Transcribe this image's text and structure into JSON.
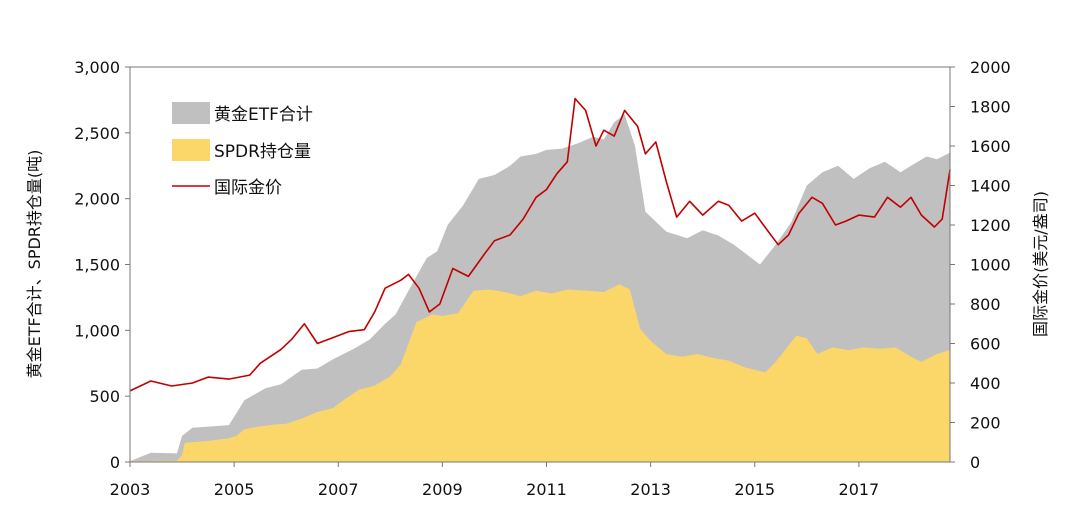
{
  "chart_data": {
    "type": "area",
    "x_range": [
      2003.0,
      2018.75
    ],
    "y_left": {
      "label": "黄金ETF合计、SPDR持仓量(吨)",
      "ylim": [
        0,
        3000
      ],
      "ticks": [
        0,
        500,
        1000,
        1500,
        2000,
        2500,
        3000
      ],
      "tick_labels": [
        "0",
        "500",
        "1,000",
        "1,500",
        "2,000",
        "2,500",
        "3,000"
      ]
    },
    "y_right": {
      "label": "国际金价(美元/盎司)",
      "ylim": [
        0,
        2000
      ],
      "ticks": [
        0,
        200,
        400,
        600,
        800,
        1000,
        1200,
        1400,
        1600,
        1800,
        2000
      ],
      "tick_labels": [
        "0",
        "200",
        "400",
        "600",
        "800",
        "1000",
        "1200",
        "1400",
        "1600",
        "1800",
        "2000"
      ]
    },
    "x_ticks": [
      2003,
      2005,
      2007,
      2009,
      2011,
      2013,
      2015,
      2017
    ],
    "x_tick_labels": [
      "2003",
      "2005",
      "2007",
      "2009",
      "2011",
      "2013",
      "2015",
      "2017"
    ],
    "legend_position": "top-left",
    "grid": false,
    "series": [
      {
        "name": "黄金ETF合计",
        "kind": "area",
        "axis": "left",
        "color": "#c0c0c0",
        "points": [
          [
            2003.0,
            5
          ],
          [
            2003.4,
            70
          ],
          [
            2003.9,
            65
          ],
          [
            2004.0,
            200
          ],
          [
            2004.2,
            260
          ],
          [
            2004.9,
            280
          ],
          [
            2005.2,
            470
          ],
          [
            2005.6,
            560
          ],
          [
            2005.9,
            590
          ],
          [
            2006.3,
            700
          ],
          [
            2006.6,
            710
          ],
          [
            2006.9,
            780
          ],
          [
            2007.3,
            860
          ],
          [
            2007.6,
            930
          ],
          [
            2007.9,
            1050
          ],
          [
            2008.1,
            1120
          ],
          [
            2008.35,
            1300
          ],
          [
            2008.7,
            1550
          ],
          [
            2008.9,
            1600
          ],
          [
            2009.1,
            1800
          ],
          [
            2009.4,
            1950
          ],
          [
            2009.7,
            2150
          ],
          [
            2010.0,
            2180
          ],
          [
            2010.3,
            2250
          ],
          [
            2010.5,
            2320
          ],
          [
            2010.8,
            2340
          ],
          [
            2011.0,
            2370
          ],
          [
            2011.3,
            2380
          ],
          [
            2011.6,
            2420
          ],
          [
            2011.9,
            2470
          ],
          [
            2012.1,
            2450
          ],
          [
            2012.3,
            2580
          ],
          [
            2012.5,
            2640
          ],
          [
            2012.7,
            2400
          ],
          [
            2012.9,
            1900
          ],
          [
            2013.3,
            1750
          ],
          [
            2013.7,
            1700
          ],
          [
            2014.0,
            1760
          ],
          [
            2014.3,
            1720
          ],
          [
            2014.6,
            1650
          ],
          [
            2014.9,
            1560
          ],
          [
            2015.1,
            1500
          ],
          [
            2015.4,
            1650
          ],
          [
            2015.7,
            1820
          ],
          [
            2016.0,
            2100
          ],
          [
            2016.3,
            2200
          ],
          [
            2016.6,
            2250
          ],
          [
            2016.9,
            2150
          ],
          [
            2017.2,
            2230
          ],
          [
            2017.5,
            2280
          ],
          [
            2017.8,
            2200
          ],
          [
            2018.0,
            2250
          ],
          [
            2018.3,
            2320
          ],
          [
            2018.5,
            2300
          ],
          [
            2018.75,
            2350
          ]
        ]
      },
      {
        "name": "SPDR持仓量",
        "kind": "area",
        "axis": "left",
        "color": "#fbd769",
        "points": [
          [
            2003.0,
            5
          ],
          [
            2003.9,
            10
          ],
          [
            2004.0,
            50
          ],
          [
            2004.05,
            145
          ],
          [
            2004.5,
            160
          ],
          [
            2004.9,
            180
          ],
          [
            2005.05,
            200
          ],
          [
            2005.2,
            250
          ],
          [
            2005.5,
            270
          ],
          [
            2005.8,
            285
          ],
          [
            2006.0,
            290
          ],
          [
            2006.3,
            330
          ],
          [
            2006.6,
            380
          ],
          [
            2006.9,
            410
          ],
          [
            2007.1,
            470
          ],
          [
            2007.4,
            550
          ],
          [
            2007.7,
            580
          ],
          [
            2008.0,
            650
          ],
          [
            2008.2,
            740
          ],
          [
            2008.35,
            900
          ],
          [
            2008.5,
            1060
          ],
          [
            2008.8,
            1120
          ],
          [
            2009.0,
            1110
          ],
          [
            2009.3,
            1130
          ],
          [
            2009.6,
            1300
          ],
          [
            2009.9,
            1310
          ],
          [
            2010.2,
            1290
          ],
          [
            2010.5,
            1260
          ],
          [
            2010.8,
            1300
          ],
          [
            2011.1,
            1280
          ],
          [
            2011.4,
            1310
          ],
          [
            2011.8,
            1300
          ],
          [
            2012.1,
            1290
          ],
          [
            2012.4,
            1350
          ],
          [
            2012.6,
            1310
          ],
          [
            2012.8,
            1010
          ],
          [
            2013.0,
            920
          ],
          [
            2013.3,
            820
          ],
          [
            2013.6,
            800
          ],
          [
            2013.9,
            820
          ],
          [
            2014.2,
            790
          ],
          [
            2014.5,
            770
          ],
          [
            2014.8,
            720
          ],
          [
            2015.0,
            700
          ],
          [
            2015.2,
            680
          ],
          [
            2015.4,
            760
          ],
          [
            2015.6,
            860
          ],
          [
            2015.8,
            960
          ],
          [
            2016.0,
            940
          ],
          [
            2016.2,
            820
          ],
          [
            2016.5,
            870
          ],
          [
            2016.8,
            850
          ],
          [
            2017.1,
            870
          ],
          [
            2017.4,
            860
          ],
          [
            2017.7,
            870
          ],
          [
            2018.0,
            800
          ],
          [
            2018.2,
            760
          ],
          [
            2018.5,
            820
          ],
          [
            2018.75,
            850
          ]
        ]
      },
      {
        "name": "国际金价",
        "kind": "line",
        "axis": "right",
        "color": "#c00000",
        "points": [
          [
            2003.0,
            360
          ],
          [
            2003.4,
            410
          ],
          [
            2003.8,
            385
          ],
          [
            2004.2,
            400
          ],
          [
            2004.5,
            430
          ],
          [
            2004.9,
            420
          ],
          [
            2005.3,
            440
          ],
          [
            2005.5,
            500
          ],
          [
            2005.9,
            570
          ],
          [
            2006.1,
            620
          ],
          [
            2006.35,
            700
          ],
          [
            2006.6,
            600
          ],
          [
            2006.9,
            630
          ],
          [
            2007.2,
            660
          ],
          [
            2007.5,
            670
          ],
          [
            2007.7,
            760
          ],
          [
            2007.9,
            880
          ],
          [
            2008.2,
            920
          ],
          [
            2008.35,
            950
          ],
          [
            2008.55,
            880
          ],
          [
            2008.75,
            760
          ],
          [
            2008.95,
            800
          ],
          [
            2009.2,
            980
          ],
          [
            2009.5,
            940
          ],
          [
            2009.8,
            1050
          ],
          [
            2010.0,
            1120
          ],
          [
            2010.3,
            1150
          ],
          [
            2010.55,
            1230
          ],
          [
            2010.8,
            1340
          ],
          [
            2011.0,
            1380
          ],
          [
            2011.2,
            1460
          ],
          [
            2011.4,
            1520
          ],
          [
            2011.55,
            1840
          ],
          [
            2011.75,
            1780
          ],
          [
            2011.95,
            1600
          ],
          [
            2012.1,
            1680
          ],
          [
            2012.3,
            1650
          ],
          [
            2012.5,
            1780
          ],
          [
            2012.75,
            1700
          ],
          [
            2012.9,
            1560
          ],
          [
            2013.1,
            1620
          ],
          [
            2013.3,
            1420
          ],
          [
            2013.5,
            1240
          ],
          [
            2013.75,
            1320
          ],
          [
            2014.0,
            1250
          ],
          [
            2014.3,
            1320
          ],
          [
            2014.5,
            1300
          ],
          [
            2014.75,
            1220
          ],
          [
            2015.0,
            1260
          ],
          [
            2015.25,
            1170
          ],
          [
            2015.45,
            1100
          ],
          [
            2015.65,
            1150
          ],
          [
            2015.85,
            1260
          ],
          [
            2016.1,
            1340
          ],
          [
            2016.3,
            1310
          ],
          [
            2016.55,
            1200
          ],
          [
            2016.75,
            1220
          ],
          [
            2017.0,
            1250
          ],
          [
            2017.3,
            1240
          ],
          [
            2017.55,
            1340
          ],
          [
            2017.8,
            1290
          ],
          [
            2018.0,
            1340
          ],
          [
            2018.2,
            1250
          ],
          [
            2018.45,
            1190
          ],
          [
            2018.6,
            1230
          ],
          [
            2018.75,
            1480
          ]
        ]
      }
    ]
  }
}
